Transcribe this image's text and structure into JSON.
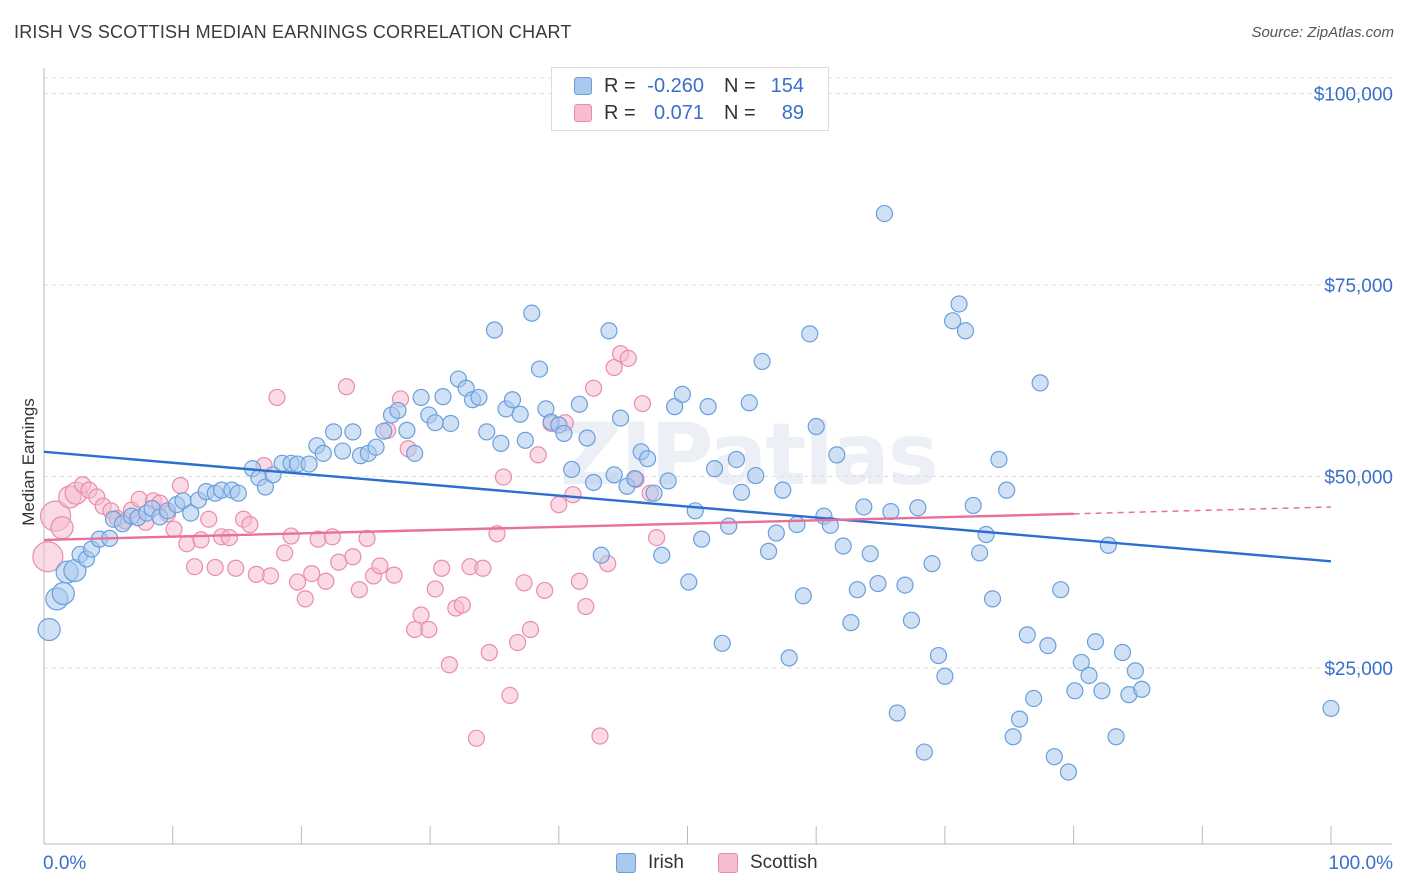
{
  "title": "IRISH VS SCOTTISH MEDIAN EARNINGS CORRELATION CHART",
  "source": "Source: ZipAtlas.com",
  "watermark": "ZIPatlas",
  "legend": {
    "rows": [
      {
        "r_label": "R =",
        "r_value": "-0.260",
        "n_label": "N =",
        "n_value": "154"
      },
      {
        "r_label": "R =",
        "r_value": "0.071",
        "n_label": "N =",
        "n_value": "89"
      }
    ]
  },
  "bottom_legend": [
    "Irish",
    "Scottish"
  ],
  "colors": {
    "irish_fill": "#a9c8ee",
    "irish_stroke": "#6a9fdc",
    "irish_line": "#2b6fd1",
    "scottish_fill": "#f6bcd0",
    "scottish_stroke": "#ea8cae",
    "scottish_line": "#e8709a",
    "grid": "#dddddd",
    "axis_label": "#3a6fc9"
  },
  "chart_data": {
    "type": "scatter",
    "title": "IRISH VS SCOTTISH MEDIAN EARNINGS CORRELATION CHART",
    "xlabel": "",
    "ylabel": "Median Earnings",
    "x_tick_labels": [
      "0.0%",
      "100.0%"
    ],
    "y_tick_labels": [
      "$25,000",
      "$50,000",
      "$75,000",
      "$100,000"
    ],
    "y_ticks": [
      25000,
      50000,
      75000,
      100000
    ],
    "xlim": [
      0,
      100
    ],
    "ylim": [
      2000,
      102000
    ],
    "grid": true,
    "legend_position": "top-center",
    "series": [
      {
        "name": "Irish",
        "r": -0.26,
        "n": 154,
        "trend": {
          "x": [
            0,
            100
          ],
          "y": [
            53200,
            38900
          ]
        },
        "points": [
          [
            0.4,
            30000
          ],
          [
            1.0,
            34000
          ],
          [
            1.5,
            34700
          ],
          [
            1.8,
            37500
          ],
          [
            2.4,
            37700
          ],
          [
            2.8,
            39800
          ],
          [
            3.3,
            39200
          ],
          [
            3.7,
            40500
          ],
          [
            4.3,
            41800
          ],
          [
            5.1,
            41900
          ],
          [
            5.4,
            44400
          ],
          [
            6.1,
            43800
          ],
          [
            6.8,
            44800
          ],
          [
            7.3,
            44600
          ],
          [
            8.0,
            45200
          ],
          [
            8.4,
            45800
          ],
          [
            9.0,
            44700
          ],
          [
            9.6,
            45500
          ],
          [
            10.3,
            46300
          ],
          [
            10.8,
            46800
          ],
          [
            11.4,
            45200
          ],
          [
            12.0,
            46900
          ],
          [
            12.6,
            48000
          ],
          [
            13.3,
            47800
          ],
          [
            13.8,
            48200
          ],
          [
            14.6,
            48200
          ],
          [
            15.1,
            47800
          ],
          [
            16.2,
            51000
          ],
          [
            16.7,
            49800
          ],
          [
            17.2,
            48600
          ],
          [
            17.8,
            50200
          ],
          [
            18.5,
            51700
          ],
          [
            19.2,
            51700
          ],
          [
            19.7,
            51600
          ],
          [
            20.6,
            51600
          ],
          [
            21.2,
            54000
          ],
          [
            21.7,
            53000
          ],
          [
            22.5,
            55800
          ],
          [
            23.2,
            53300
          ],
          [
            24.0,
            55800
          ],
          [
            24.6,
            52700
          ],
          [
            25.2,
            53000
          ],
          [
            25.8,
            53800
          ],
          [
            26.4,
            55900
          ],
          [
            27.0,
            58000
          ],
          [
            27.5,
            58600
          ],
          [
            28.2,
            56000
          ],
          [
            28.8,
            53000
          ],
          [
            29.3,
            60300
          ],
          [
            29.9,
            58000
          ],
          [
            30.4,
            57000
          ],
          [
            31.0,
            60400
          ],
          [
            31.6,
            56900
          ],
          [
            32.2,
            62700
          ],
          [
            32.8,
            61500
          ],
          [
            33.3,
            60000
          ],
          [
            33.8,
            60300
          ],
          [
            34.4,
            55800
          ],
          [
            35.0,
            69100
          ],
          [
            35.5,
            54300
          ],
          [
            35.9,
            58800
          ],
          [
            36.4,
            60000
          ],
          [
            37.0,
            58100
          ],
          [
            37.4,
            54700
          ],
          [
            37.9,
            71300
          ],
          [
            38.5,
            64000
          ],
          [
            39.0,
            58800
          ],
          [
            39.4,
            57100
          ],
          [
            40.0,
            56700
          ],
          [
            40.4,
            55600
          ],
          [
            41.0,
            50900
          ],
          [
            41.6,
            59400
          ],
          [
            42.2,
            55000
          ],
          [
            42.7,
            49200
          ],
          [
            43.3,
            39700
          ],
          [
            43.9,
            69000
          ],
          [
            44.3,
            50200
          ],
          [
            44.8,
            57600
          ],
          [
            45.3,
            48700
          ],
          [
            45.9,
            49700
          ],
          [
            46.4,
            53200
          ],
          [
            46.9,
            52300
          ],
          [
            47.4,
            47800
          ],
          [
            48.0,
            39700
          ],
          [
            48.5,
            49400
          ],
          [
            49.0,
            59100
          ],
          [
            49.6,
            60700
          ],
          [
            50.1,
            36200
          ],
          [
            50.6,
            45500
          ],
          [
            51.1,
            41800
          ],
          [
            51.6,
            59100
          ],
          [
            52.1,
            51000
          ],
          [
            52.7,
            28200
          ],
          [
            53.2,
            43500
          ],
          [
            53.8,
            52200
          ],
          [
            54.2,
            47900
          ],
          [
            54.8,
            59600
          ],
          [
            55.3,
            50100
          ],
          [
            55.8,
            65000
          ],
          [
            56.3,
            40200
          ],
          [
            56.9,
            42600
          ],
          [
            57.4,
            48200
          ],
          [
            57.9,
            26300
          ],
          [
            58.5,
            43700
          ],
          [
            59.0,
            34400
          ],
          [
            59.5,
            68600
          ],
          [
            60.0,
            56500
          ],
          [
            60.6,
            44800
          ],
          [
            61.1,
            43600
          ],
          [
            61.6,
            52800
          ],
          [
            62.1,
            40900
          ],
          [
            62.7,
            30900
          ],
          [
            63.2,
            35200
          ],
          [
            63.7,
            46000
          ],
          [
            64.2,
            39900
          ],
          [
            64.8,
            36000
          ],
          [
            65.3,
            84300
          ],
          [
            65.8,
            45400
          ],
          [
            66.3,
            19100
          ],
          [
            66.9,
            35800
          ],
          [
            67.4,
            31200
          ],
          [
            67.9,
            45900
          ],
          [
            68.4,
            14000
          ],
          [
            69.0,
            38600
          ],
          [
            69.5,
            26600
          ],
          [
            70.0,
            23900
          ],
          [
            70.6,
            70300
          ],
          [
            71.1,
            72500
          ],
          [
            71.6,
            69000
          ],
          [
            72.2,
            46200
          ],
          [
            72.7,
            40000
          ],
          [
            73.2,
            42400
          ],
          [
            73.7,
            34000
          ],
          [
            74.2,
            52200
          ],
          [
            74.8,
            48200
          ],
          [
            75.3,
            16000
          ],
          [
            75.8,
            18300
          ],
          [
            76.4,
            29300
          ],
          [
            76.9,
            21000
          ],
          [
            77.4,
            62200
          ],
          [
            78.0,
            27900
          ],
          [
            78.5,
            13400
          ],
          [
            79.0,
            35200
          ],
          [
            79.6,
            11400
          ],
          [
            80.1,
            22000
          ],
          [
            80.6,
            25700
          ],
          [
            81.2,
            24000
          ],
          [
            81.7,
            28400
          ],
          [
            82.2,
            22000
          ],
          [
            82.7,
            41000
          ],
          [
            83.3,
            16000
          ],
          [
            83.8,
            27000
          ],
          [
            84.3,
            21500
          ],
          [
            84.8,
            24600
          ],
          [
            85.3,
            22200
          ],
          [
            100.0,
            19700
          ]
        ]
      },
      {
        "name": "Scottish",
        "r": 0.071,
        "n": 89,
        "trend": {
          "x": [
            0,
            80,
            100
          ],
          "y": [
            41700,
            45100,
            46000
          ]
        },
        "points": [
          [
            0.3,
            39500
          ],
          [
            0.9,
            44800
          ],
          [
            1.4,
            43300
          ],
          [
            2.0,
            47300
          ],
          [
            2.5,
            47800
          ],
          [
            3.0,
            48900
          ],
          [
            3.5,
            48200
          ],
          [
            4.1,
            47300
          ],
          [
            4.6,
            46100
          ],
          [
            5.2,
            45500
          ],
          [
            5.7,
            44500
          ],
          [
            6.3,
            44200
          ],
          [
            6.8,
            45600
          ],
          [
            7.4,
            47000
          ],
          [
            7.9,
            44000
          ],
          [
            8.5,
            46800
          ],
          [
            9.0,
            46500
          ],
          [
            9.6,
            45100
          ],
          [
            10.1,
            43100
          ],
          [
            10.6,
            48800
          ],
          [
            11.1,
            41200
          ],
          [
            11.7,
            38200
          ],
          [
            12.2,
            41700
          ],
          [
            12.8,
            44400
          ],
          [
            13.3,
            38100
          ],
          [
            13.8,
            42100
          ],
          [
            14.4,
            42000
          ],
          [
            14.9,
            38000
          ],
          [
            15.5,
            44400
          ],
          [
            16.0,
            43700
          ],
          [
            16.5,
            37200
          ],
          [
            17.1,
            51400
          ],
          [
            17.6,
            37000
          ],
          [
            18.1,
            60300
          ],
          [
            18.7,
            40000
          ],
          [
            19.2,
            42200
          ],
          [
            19.7,
            36200
          ],
          [
            20.3,
            34000
          ],
          [
            20.8,
            37300
          ],
          [
            21.3,
            41800
          ],
          [
            21.9,
            36300
          ],
          [
            22.4,
            42100
          ],
          [
            22.9,
            38800
          ],
          [
            23.5,
            61700
          ],
          [
            24.0,
            39500
          ],
          [
            24.5,
            35200
          ],
          [
            25.1,
            41900
          ],
          [
            25.6,
            37000
          ],
          [
            26.1,
            38300
          ],
          [
            26.7,
            56000
          ],
          [
            27.2,
            37100
          ],
          [
            27.7,
            60100
          ],
          [
            28.3,
            53600
          ],
          [
            28.8,
            30000
          ],
          [
            29.3,
            31900
          ],
          [
            29.9,
            30000
          ],
          [
            30.4,
            35300
          ],
          [
            30.9,
            38000
          ],
          [
            31.5,
            25400
          ],
          [
            32.0,
            32800
          ],
          [
            32.5,
            33200
          ],
          [
            33.1,
            38200
          ],
          [
            33.6,
            15800
          ],
          [
            34.1,
            38000
          ],
          [
            34.6,
            27000
          ],
          [
            35.2,
            42500
          ],
          [
            35.7,
            49900
          ],
          [
            36.2,
            21400
          ],
          [
            36.8,
            28300
          ],
          [
            37.3,
            36100
          ],
          [
            37.8,
            30000
          ],
          [
            38.4,
            52800
          ],
          [
            38.9,
            35100
          ],
          [
            39.4,
            56900
          ],
          [
            40.0,
            46300
          ],
          [
            40.5,
            57000
          ],
          [
            41.1,
            47600
          ],
          [
            41.6,
            36300
          ],
          [
            42.1,
            33000
          ],
          [
            42.7,
            61500
          ],
          [
            43.2,
            16100
          ],
          [
            43.8,
            38600
          ],
          [
            44.3,
            64200
          ],
          [
            44.8,
            66000
          ],
          [
            45.4,
            65400
          ],
          [
            46.0,
            49600
          ],
          [
            46.5,
            59500
          ],
          [
            47.1,
            47800
          ],
          [
            47.6,
            42000
          ]
        ]
      }
    ]
  }
}
